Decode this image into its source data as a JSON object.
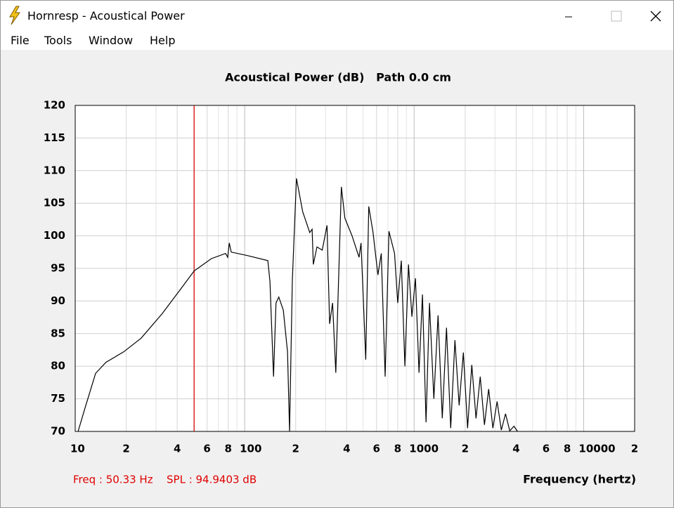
{
  "window": {
    "title": "Hornresp - Acoustical Power",
    "menu": [
      "File",
      "Tools",
      "Window",
      "Help"
    ]
  },
  "chart_data": {
    "type": "line",
    "title": "Acoustical Power (dB)   Path 0.0 cm",
    "x_label": "Frequency (hertz)",
    "xscale": "log",
    "xlim": [
      10,
      20000
    ],
    "xticks": [
      10,
      {
        "value": 20,
        "label": "2"
      },
      {
        "value": 40,
        "label": "4"
      },
      {
        "value": 60,
        "label": "6"
      },
      {
        "value": 80,
        "label": "8"
      },
      100,
      {
        "value": 200,
        "label": "2"
      },
      {
        "value": 400,
        "label": "4"
      },
      {
        "value": 600,
        "label": "6"
      },
      {
        "value": 800,
        "label": "8"
      },
      1000,
      {
        "value": 2000,
        "label": "2"
      },
      {
        "value": 4000,
        "label": "4"
      },
      {
        "value": 6000,
        "label": "6"
      },
      {
        "value": 8000,
        "label": "8"
      },
      10000,
      {
        "value": 20000,
        "label": "2"
      }
    ],
    "ylim": [
      70,
      120
    ],
    "yticks": [
      70,
      75,
      80,
      85,
      90,
      95,
      100,
      105,
      110,
      115,
      120
    ],
    "grid": true,
    "series": [
      {
        "color": "#000000",
        "x": [
          10.4,
          11.43,
          13.19,
          15.2,
          19.3,
          24.5,
          32.7,
          43.5,
          50.3,
          63.6,
          77.2,
          79.4,
          81.1,
          83.3,
          102.6,
          137,
          141,
          148,
          153,
          159,
          169,
          179,
          184,
          191,
          202,
          220,
          242,
          250,
          254,
          267,
          287,
          306,
          317,
          330,
          345,
          372,
          390,
          430,
          473,
          486,
          518,
          540,
          572,
          611,
          640,
          674,
          710,
          766,
          800,
          840,
          882,
          926,
          970,
          1018,
          1068,
          1120,
          1175,
          1232,
          1307,
          1384,
          1466,
          1552,
          1644,
          1741,
          1843,
          1952,
          2067,
          2189,
          2318,
          2455,
          2600,
          2753,
          2915,
          3087,
          3269,
          3462,
          3666,
          3883,
          4074
        ],
        "values": [
          70,
          73.6,
          78.9,
          80.6,
          82.2,
          84.3,
          88.1,
          92.4,
          94.6,
          96.5,
          97.3,
          96.7,
          98.9,
          97.5,
          97.0,
          96.2,
          93.0,
          78.4,
          89.7,
          90.6,
          88.6,
          82.2,
          70,
          93,
          108.8,
          103.7,
          100.5,
          101,
          95.6,
          98.3,
          97.8,
          101.6,
          86.5,
          89.7,
          79,
          107.5,
          102.7,
          100,
          96.7,
          98.9,
          81,
          104.5,
          100.5,
          94,
          97.3,
          78.4,
          100.7,
          97.3,
          89.7,
          96.2,
          80,
          95.6,
          87.6,
          93.5,
          79,
          91,
          71.4,
          89.7,
          75,
          87.8,
          72,
          85.9,
          70.5,
          84.0,
          74,
          82.1,
          70.5,
          80.2,
          72,
          78.4,
          71,
          76.5,
          70.5,
          74.6,
          70.2,
          72.7,
          70.1,
          70.8,
          70
        ]
      }
    ],
    "cursor": {
      "x": 50.33,
      "color": "#e00000"
    },
    "annotations": [
      "Freq : 50.33 Hz",
      "SPL : 94.9403 dB"
    ]
  }
}
